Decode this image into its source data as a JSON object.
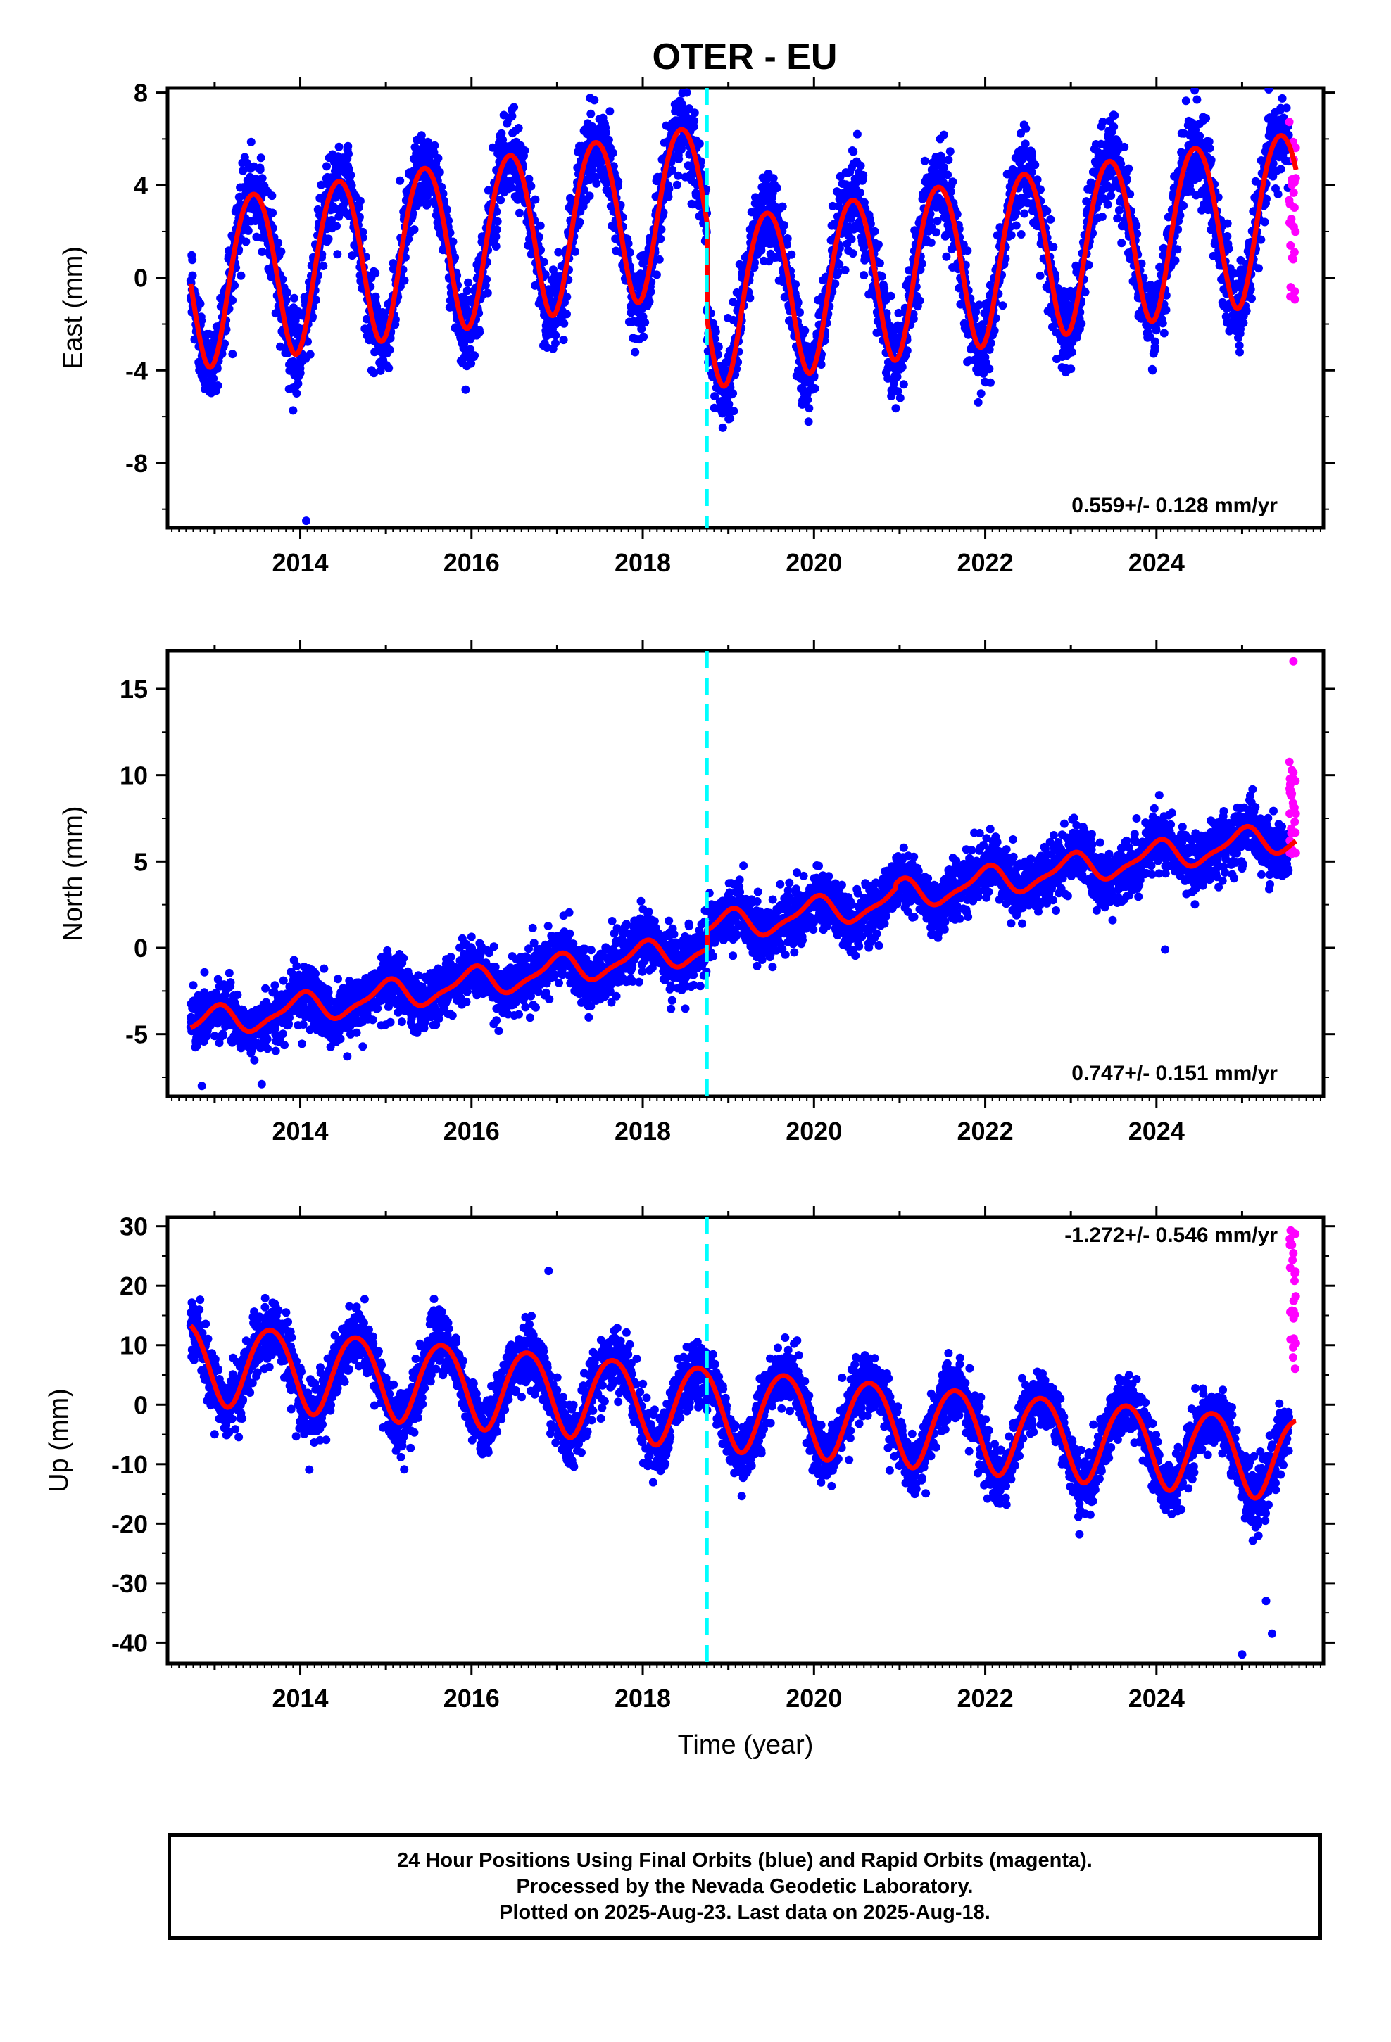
{
  "title": "OTER - EU",
  "colors": {
    "final_orbits": "#0000ff",
    "rapid_orbits": "#ff00ff",
    "model": "#ff0000",
    "equipment_change": "#00ffff"
  },
  "chart_data": [
    {
      "type": "scatter",
      "component": "east",
      "ylabel": "East (mm)",
      "xlabel": "",
      "xlim": [
        2012.45,
        2025.95
      ],
      "ylim": [
        -10.8,
        8.2
      ],
      "yticks": [
        -8,
        -4,
        0,
        4,
        8
      ],
      "xticks": [
        2014,
        2016,
        2018,
        2020,
        2022,
        2024
      ],
      "rate_label": "0.559+/- 0.128 mm/yr",
      "equipment_change_year": 2018.75,
      "series": [
        {
          "name": "Final Orbits",
          "style": "blue dots"
        },
        {
          "name": "Rapid Orbits",
          "style": "magenta dots"
        },
        {
          "name": "Model",
          "style": "red line"
        }
      ],
      "data_span": [
        2012.72,
        2025.63
      ],
      "rapid_span": [
        2025.55,
        2025.63
      ],
      "model": {
        "segments": [
          {
            "start": 2012.72,
            "end": 2018.75,
            "rate": 0.559,
            "offset_at_start": -0.1
          },
          {
            "start": 2018.75,
            "end": 2025.63,
            "rate": 0.559,
            "offset_at_start": -0.9
          }
        ],
        "annual_amplitude": 3.6,
        "annual_phase_year": 2013.45,
        "semiannual_amplitude": 0.3,
        "semiannual_phase_year": 2013.2
      },
      "scatter_sigma": 1.1,
      "rapid_values_range": [
        -1.3,
        6.9
      ],
      "outliers": [
        {
          "x": 2014.07,
          "y": -10.5
        }
      ]
    },
    {
      "type": "scatter",
      "component": "north",
      "ylabel": "North (mm)",
      "xlabel": "",
      "xlim": [
        2012.45,
        2025.95
      ],
      "ylim": [
        -8.6,
        17.2
      ],
      "yticks": [
        -5,
        0,
        5,
        10,
        15
      ],
      "xticks": [
        2014,
        2016,
        2018,
        2020,
        2022,
        2024
      ],
      "rate_label": "0.747+/- 0.151 mm/yr",
      "equipment_change_year": 2018.75,
      "series": [
        {
          "name": "Final Orbits",
          "style": "blue dots"
        },
        {
          "name": "Rapid Orbits",
          "style": "magenta dots"
        },
        {
          "name": "Model",
          "style": "red line"
        }
      ],
      "data_span": [
        2012.72,
        2025.63
      ],
      "rapid_span": [
        2025.55,
        2025.63
      ],
      "model": {
        "segments": [
          {
            "start": 2012.72,
            "end": 2018.75,
            "rate": 0.747,
            "offset_at_start": -4.5
          },
          {
            "start": 2018.75,
            "end": 2020.95,
            "rate": 0.747,
            "offset_at_start": 1.1
          },
          {
            "start": 2020.95,
            "end": 2025.63,
            "rate": 0.747,
            "offset_at_start": 3.0
          }
        ],
        "annual_amplitude": 0.8,
        "annual_phase_year": 2013.0,
        "semiannual_amplitude": 0.25,
        "semiannual_phase_year": 2013.1
      },
      "scatter_sigma": 1.05,
      "rapid_values_range": [
        5.0,
        11.0
      ],
      "outliers": [
        {
          "x": 2025.6,
          "y": 16.6
        },
        {
          "x": 2012.85,
          "y": -8.0
        },
        {
          "x": 2013.55,
          "y": -7.9
        },
        {
          "x": 2024.1,
          "y": -0.1
        }
      ]
    },
    {
      "type": "scatter",
      "component": "up",
      "ylabel": "Up (mm)",
      "xlabel": "Time (year)",
      "xlim": [
        2012.45,
        2025.95
      ],
      "ylim": [
        -43.5,
        31.5
      ],
      "yticks": [
        -40,
        -30,
        -20,
        -10,
        0,
        10,
        20,
        30
      ],
      "xticks": [
        2014,
        2016,
        2018,
        2020,
        2022,
        2024
      ],
      "rate_label": "-1.272+/- 0.546 mm/yr",
      "equipment_change_year": 2018.75,
      "series": [
        {
          "name": "Final Orbits",
          "style": "blue dots"
        },
        {
          "name": "Rapid Orbits",
          "style": "magenta dots"
        },
        {
          "name": "Model",
          "style": "red line"
        }
      ],
      "data_span": [
        2012.72,
        2025.63
      ],
      "rapid_span": [
        2025.55,
        2025.63
      ],
      "model": {
        "segments": [
          {
            "start": 2012.72,
            "end": 2025.63,
            "rate": -1.272,
            "offset_at_start": 7.5
          }
        ],
        "annual_amplitude": 6.8,
        "annual_phase_year": 2013.65,
        "semiannual_amplitude": 0.6,
        "semiannual_phase_year": 2013.4
      },
      "scatter_sigma": 3.2,
      "rapid_values_range": [
        6.0,
        29.5
      ],
      "outliers": [
        {
          "x": 2025.0,
          "y": -42.0
        },
        {
          "x": 2025.35,
          "y": -38.5
        },
        {
          "x": 2025.28,
          "y": -33.0
        },
        {
          "x": 2023.1,
          "y": -21.8
        },
        {
          "x": 2016.9,
          "y": 22.5
        }
      ]
    }
  ],
  "footer": {
    "line1": "24 Hour Positions Using Final Orbits (blue) and Rapid Orbits (magenta).",
    "line2": "Processed by the Nevada Geodetic Laboratory.",
    "line3": "Plotted on 2025-Aug-23. Last data on 2025-Aug-18."
  }
}
